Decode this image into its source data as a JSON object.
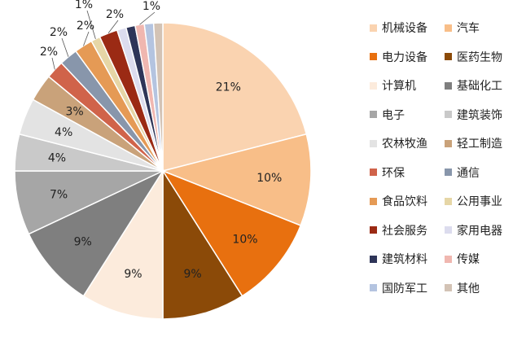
{
  "chart_data": {
    "type": "pie",
    "title": "",
    "legend_position": "right",
    "slices": [
      {
        "name": "机械设备",
        "value": 21,
        "label": "21%",
        "color": "#FAD3B0"
      },
      {
        "name": "汽车",
        "value": 10,
        "label": "10%",
        "color": "#F8BE88"
      },
      {
        "name": "电力设备",
        "value": 10,
        "label": "10%",
        "color": "#E8700F"
      },
      {
        "name": "医药生物",
        "value": 9,
        "label": "9%",
        "color": "#8B4A08"
      },
      {
        "name": "计算机",
        "value": 9,
        "label": "9%",
        "color": "#FCEBDC"
      },
      {
        "name": "基础化工",
        "value": 9,
        "label": "9%",
        "color": "#7F7F7F"
      },
      {
        "name": "电子",
        "value": 7,
        "label": "7%",
        "color": "#A6A6A6"
      },
      {
        "name": "建筑装饰",
        "value": 4,
        "label": "4%",
        "color": "#C9C9C9"
      },
      {
        "name": "农林牧渔",
        "value": 4,
        "label": "4%",
        "color": "#E3E3E3"
      },
      {
        "name": "轻工制造",
        "value": 3,
        "label": "3%",
        "color": "#C9A27A"
      },
      {
        "name": "环保",
        "value": 2,
        "label": "2%",
        "color": "#D0634A"
      },
      {
        "name": "通信",
        "value": 2,
        "label": "2%",
        "color": "#8896AB"
      },
      {
        "name": "食品饮料",
        "value": 2,
        "label": "2%",
        "color": "#E59A55"
      },
      {
        "name": "公用事业",
        "value": 1,
        "label": "1%",
        "color": "#E6D6A6"
      },
      {
        "name": "社会服务",
        "value": 2,
        "label": "2%",
        "color": "#9B2A14"
      },
      {
        "name": "家用电器",
        "value": 1,
        "label": "",
        "color": "#DCDCEE"
      },
      {
        "name": "建筑材料",
        "value": 1,
        "label": "",
        "color": "#2E3558"
      },
      {
        "name": "传媒",
        "value": 1,
        "label": "1%",
        "color": "#F0B7B0"
      },
      {
        "name": "国防军工",
        "value": 1,
        "label": "",
        "color": "#B4C4E0"
      },
      {
        "name": "其他",
        "value": 1,
        "label": "",
        "color": "#D3C3B5"
      }
    ],
    "legend": [
      "机械设备",
      "汽车",
      "电力设备",
      "医药生物",
      "计算机",
      "基础化工",
      "电子",
      "建筑装饰",
      "农林牧渔",
      "轻工制造",
      "环保",
      "通信",
      "食品饮料",
      "公用事业",
      "社会服务",
      "家用电器",
      "建筑材料",
      "传媒",
      "国防军工",
      "其他"
    ]
  }
}
